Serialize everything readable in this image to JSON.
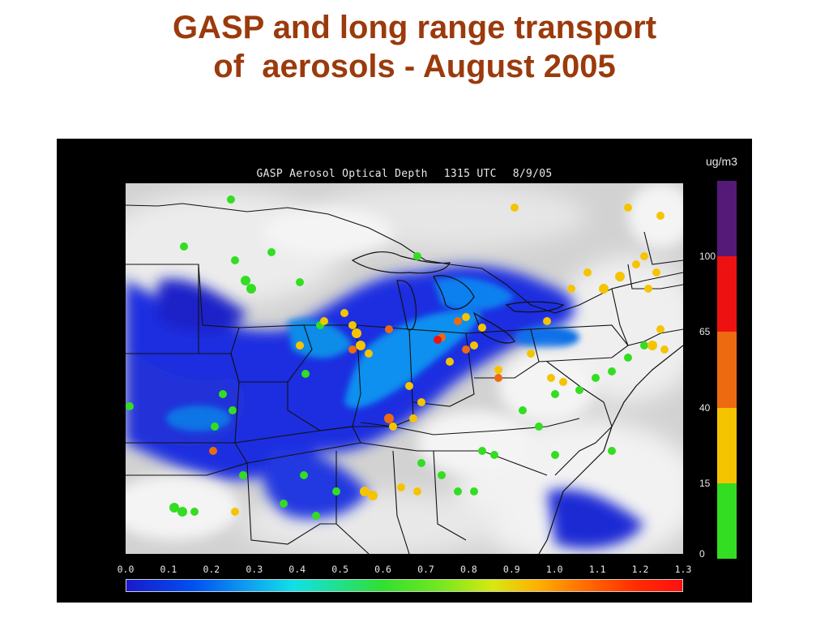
{
  "page": {
    "title_line1": "GASP and long range transport",
    "title_line2": "of  aerosols - August 2005"
  },
  "map": {
    "title": "GASP Aerosol Optical Depth",
    "time": "1315 UTC",
    "date": "8/9/05"
  },
  "colorbar": {
    "ticks": [
      "0.0",
      "0.1",
      "0.2",
      "0.3",
      "0.4",
      "0.5",
      "0.6",
      "0.7",
      "0.8",
      "0.9",
      "1.0",
      "1.1",
      "1.2",
      "1.3"
    ],
    "min": 0.0,
    "max": 1.3
  },
  "legend": {
    "unit": "ug/m3",
    "labels": [
      "100",
      "65",
      "40",
      "15",
      "0"
    ],
    "categories": [
      {
        "range": [
          0,
          15
        ],
        "color": "#33dd22"
      },
      {
        "range": [
          15,
          40
        ],
        "color": "#f5c400"
      },
      {
        "range": [
          40,
          65
        ],
        "color": "#ee6a10"
      },
      {
        "range": [
          65,
          100
        ],
        "color": "#ee1111"
      },
      {
        "range": [
          100,
          150
        ],
        "color": "#551a78"
      }
    ]
  },
  "colors": {
    "title": "#9b3a0c",
    "panel_background": "#000000",
    "aod_low": "#1a1acc",
    "aod_mid": "#30e030",
    "aod_high": "#ff1010"
  }
}
